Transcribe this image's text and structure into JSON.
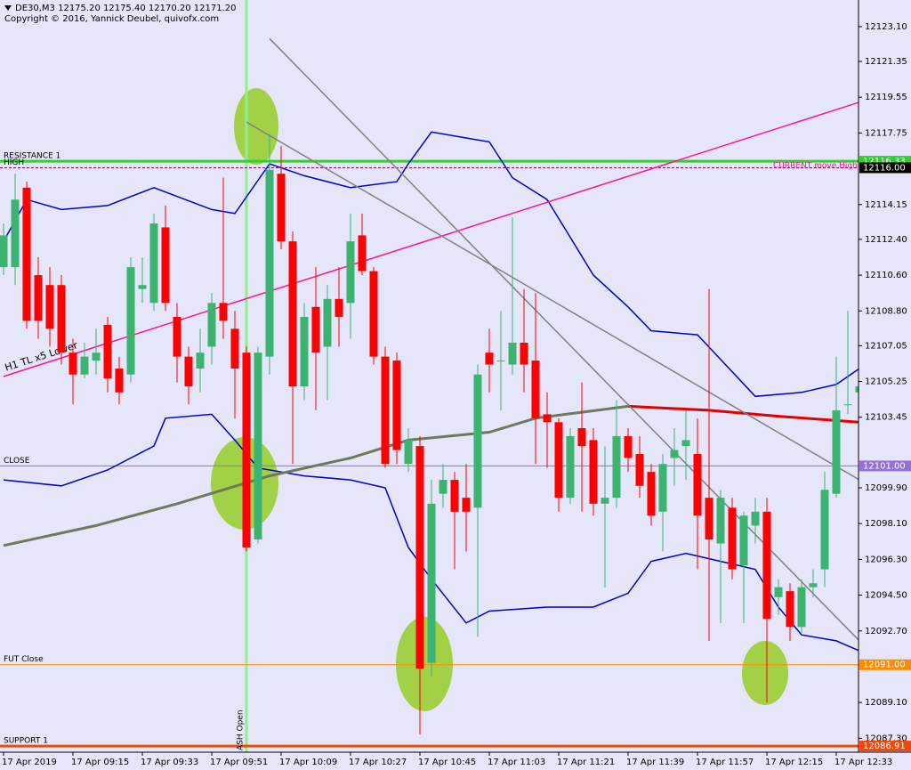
{
  "chart_data": {
    "type": "candlestick",
    "title": "DE30,M3  12175.20 12175.40 12170.20 12171.20",
    "subtitle": "Copyright © 2016, Yannick Deubel, quivofx.com",
    "categories": [
      "17 Apr 2019",
      null,
      null,
      null,
      null,
      null,
      "17 Apr 09:15",
      null,
      null,
      null,
      null,
      null,
      "17 Apr 09:33",
      null,
      null,
      null,
      null,
      null,
      "17 Apr 09:51",
      null,
      null,
      null,
      null,
      null,
      "17 Apr 10:09",
      null,
      null,
      null,
      null,
      null,
      "17 Apr 10:27",
      null,
      null,
      null,
      null,
      null,
      "17 Apr 10:45",
      null,
      null,
      null,
      null,
      null,
      "17 Apr 11:03",
      null,
      null,
      null,
      null,
      null,
      "17 Apr 11:21",
      null,
      null,
      null,
      null,
      null,
      "17 Apr 11:39",
      null,
      null,
      null,
      null,
      null,
      "17 Apr 11:57",
      null,
      null,
      null,
      null,
      null,
      "17 Apr 12:15",
      null,
      null,
      null,
      null,
      null,
      "17 Apr 12:33",
      null,
      null
    ],
    "open": [
      12111.0,
      12111.0,
      12115.0,
      12110.6,
      12110.1,
      12110.1,
      12106.7,
      12105.6,
      12106.3,
      12108.1,
      12105.9,
      12105.6,
      12109.9,
      12109.2,
      12113.0,
      12108.5,
      12106.5,
      12105.9,
      12107.0,
      12109.2,
      12107.9,
      12106.7,
      12097.3,
      12106.5,
      12115.7,
      12112.3,
      12105.0,
      12109.0,
      12107.0,
      12109.4,
      12109.2,
      12112.6,
      12110.8,
      12106.5,
      12106.3,
      12101.1,
      12102.0,
      12091.1,
      12099.6,
      12100.3,
      12099.4,
      12098.9,
      12106.7,
      12106.3,
      12106.1,
      12107.2,
      12106.3,
      12103.6,
      12103.2,
      12099.4,
      12102.9,
      12102.3,
      12099.1,
      12099.4,
      12102.5,
      12101.6,
      12100.7,
      12098.7,
      12101.4,
      12102.0,
      12101.6,
      12099.4,
      12097.1,
      12098.9,
      12096.0,
      12098.0,
      12098.7,
      12094.4,
      12094.7,
      12092.9,
      12094.9,
      12095.8,
      12099.6,
      12104.1,
      12104.7
    ],
    "high": [
      12113.2,
      12115.7,
      12115.3,
      12111.5,
      12111.0,
      12110.6,
      12107.4,
      12107.2,
      12107.9,
      12108.5,
      12106.5,
      12111.5,
      12111.5,
      12113.7,
      12114.1,
      12109.2,
      12107.0,
      12107.9,
      12109.7,
      12115.5,
      12108.8,
      12107.0,
      12107.0,
      12117.7,
      12117.1,
      12112.8,
      12109.2,
      12111.0,
      12110.1,
      12111.0,
      12113.7,
      12113.7,
      12111.0,
      12107.0,
      12106.7,
      12102.9,
      12102.5,
      12100.3,
      12101.1,
      12100.7,
      12101.1,
      12106.1,
      12107.9,
      12108.8,
      12113.5,
      12109.9,
      12109.7,
      12104.7,
      12103.4,
      12102.9,
      12105.2,
      12102.9,
      12102.0,
      12104.3,
      12102.9,
      12102.5,
      12101.1,
      12101.6,
      12102.9,
      12103.8,
      12103.4,
      12109.9,
      12099.8,
      12099.4,
      12098.7,
      12099.4,
      12099.4,
      12095.3,
      12095.1,
      12095.3,
      12095.8,
      12100.7,
      12106.5,
      12108.8,
      12105.0
    ],
    "low": [
      12110.6,
      12110.1,
      12107.9,
      12107.4,
      12107.0,
      12106.1,
      12104.1,
      12105.4,
      12105.6,
      12104.7,
      12104.1,
      12105.2,
      12109.2,
      12108.8,
      12108.8,
      12105.2,
      12104.1,
      12104.7,
      12106.1,
      12107.4,
      12103.4,
      12096.7,
      12097.1,
      12105.6,
      12111.9,
      12101.1,
      12104.3,
      12103.8,
      12104.3,
      12107.0,
      12107.4,
      12110.6,
      12106.1,
      12100.9,
      12101.1,
      12100.7,
      12087.5,
      12090.4,
      12098.9,
      12095.8,
      12096.7,
      12092.4,
      12104.7,
      12103.8,
      12105.6,
      12104.7,
      12101.1,
      12100.9,
      12098.7,
      12099.1,
      12098.7,
      12098.5,
      12094.9,
      12098.9,
      12100.7,
      12099.4,
      12098.0,
      12096.7,
      12100.0,
      12100.3,
      12095.8,
      12092.2,
      12093.1,
      12095.3,
      12093.1,
      12097.1,
      12089.1,
      12093.5,
      12092.2,
      12092.6,
      12094.4,
      12094.9,
      12099.4,
      12103.6,
      12102.5
    ],
    "close": [
      12112.6,
      12114.4,
      12108.3,
      12108.3,
      12107.9,
      12106.7,
      12105.6,
      12106.5,
      12106.7,
      12105.4,
      12104.7,
      12111.0,
      12110.1,
      12113.2,
      12109.2,
      12106.5,
      12105.0,
      12106.7,
      12109.2,
      12108.3,
      12105.9,
      12096.9,
      12106.7,
      12115.9,
      12112.3,
      12105.0,
      12108.5,
      12106.7,
      12109.4,
      12108.5,
      12112.3,
      12110.8,
      12106.5,
      12101.1,
      12101.8,
      12102.3,
      12090.8,
      12099.1,
      12100.3,
      12098.7,
      12098.7,
      12105.6,
      12106.1,
      12106.3,
      12107.2,
      12106.1,
      12103.4,
      12103.2,
      12099.4,
      12102.5,
      12102.0,
      12099.1,
      12099.4,
      12102.5,
      12101.4,
      12100.0,
      12098.5,
      12101.1,
      12101.8,
      12102.3,
      12098.5,
      12097.3,
      12099.4,
      12095.8,
      12098.5,
      12098.7,
      12093.3,
      12094.9,
      12092.9,
      12094.9,
      12095.1,
      12099.8,
      12103.8,
      12104.1,
      12105.0
    ],
    "up_color": "#3cb371",
    "down_color": "#ff0000",
    "ylim": [
      12086.6,
      12124.44
    ],
    "yticks": [
      {
        "value": 12123.1,
        "label": "12123.10"
      },
      12121.35,
      12119.55,
      12117.75,
      12114.15,
      {
        "value": 12112.4,
        "label": "12112.40"
      },
      {
        "value": 12110.6,
        "label": "12110.60"
      },
      {
        "value": 12108.8,
        "label": "12108.80"
      },
      12107.05,
      12105.25,
      12103.45,
      {
        "value": 12099.9,
        "label": "12099.90"
      },
      {
        "value": 12098.1,
        "label": "12098.10"
      },
      {
        "value": 12096.3,
        "label": "12096.30"
      },
      {
        "value": 12094.5,
        "label": "12094.50"
      },
      {
        "value": 12092.7,
        "label": "12092.70"
      },
      {
        "value": 12089.1,
        "label": "12089.10"
      },
      {
        "value": 12087.3,
        "label": "12087.30"
      }
    ],
    "indicators": [
      {
        "color": "#0000cd",
        "x": [
          0,
          2,
          5,
          9,
          13,
          18,
          20,
          23,
          26,
          30,
          34,
          35,
          37,
          40,
          42,
          44,
          47,
          51,
          54,
          56,
          60,
          65,
          69,
          72,
          74
        ],
        "values": [
          12112.3,
          12114.4,
          12113.9,
          12114.1,
          12115.0,
          12113.9,
          12113.7,
          12116.2,
          12115.6,
          12115.0,
          12115.3,
          12116.2,
          12117.8,
          12117.5,
          12117.3,
          12115.5,
          12114.4,
          12110.6,
          12109.0,
          12107.8,
          12107.6,
          12104.5,
          12104.7,
          12105.1,
          12105.9
        ]
      },
      {
        "color": "#0000cd",
        "x": [
          0,
          5,
          9,
          13,
          14,
          18,
          20,
          22,
          26,
          30,
          33,
          35,
          37,
          40,
          42,
          47,
          51,
          54,
          56,
          59,
          62,
          65,
          67,
          69,
          72,
          74
        ],
        "values": [
          12100.3,
          12100.0,
          12100.8,
          12102.0,
          12103.4,
          12103.6,
          12102.3,
          12100.9,
          12100.5,
          12100.3,
          12099.9,
          12096.9,
          12095.3,
          12093.1,
          12093.7,
          12093.9,
          12093.9,
          12094.6,
          12096.2,
          12096.6,
          12096.2,
          12095.8,
          12093.9,
          12092.5,
          12092.2,
          12091.7
        ]
      },
      {
        "color": "#6b7b5b",
        "x": [
          0,
          8,
          15,
          23,
          30,
          35,
          42,
          46,
          50,
          54
        ],
        "values": [
          12097.0,
          12098.0,
          12099.1,
          12100.5,
          12101.4,
          12102.3,
          12102.7,
          12103.4,
          12103.7,
          12104.0
        ]
      },
      {
        "color": "#e00000",
        "x": [
          54,
          61,
          67,
          74
        ],
        "values": [
          12104.0,
          12103.8,
          12103.5,
          12103.2
        ]
      }
    ],
    "trendlines": [
      {
        "label": "H1 TL x5 Lower",
        "color": "#ff1493",
        "x": [
          0,
          74
        ],
        "values": [
          12105.5,
          12119.3
        ]
      },
      {
        "color": "#808080",
        "x": [
          23,
          74
        ],
        "values": [
          12122.5,
          12092.2
        ]
      },
      {
        "color": "#808080",
        "x": [
          21,
          74
        ],
        "values": [
          12118.3,
          12100.3
        ]
      }
    ],
    "levels": [
      {
        "label": "RESISTANCE 1",
        "value": 12116.33,
        "value_label": "12116.33",
        "color": "#32cd32"
      },
      {
        "label": "HIGH",
        "value": 12116.0,
        "value_label": "12116.00",
        "color": "#800080"
      },
      {
        "label": "CLOSE",
        "value": 12101.0,
        "value_label": "12101.00",
        "color": "#9370db"
      },
      {
        "label": "FUT Close",
        "value": 12091.0,
        "value_label": "12091.00",
        "color": "#ff8c00"
      },
      {
        "label": "SUPPORT 1",
        "value": 12086.91,
        "value_label": "12086.91",
        "color": "#ff4500"
      }
    ],
    "annotations": [
      "CURRENT move  High",
      "ASH Open"
    ]
  }
}
